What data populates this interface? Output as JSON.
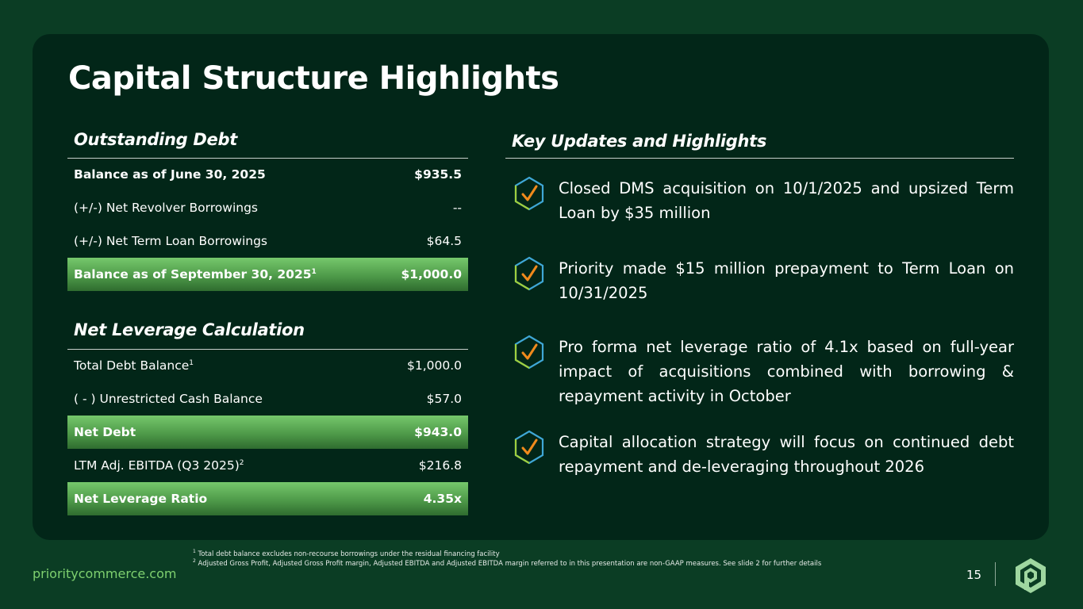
{
  "title": "Capital Structure Highlights",
  "outstanding_debt": {
    "heading": "Outstanding Debt",
    "rows": [
      {
        "label": "Balance as of June 30, 2025",
        "sup": "",
        "value": "$935.5"
      },
      {
        "label": "(+/-) Net Revolver Borrowings",
        "sup": "",
        "value": "--"
      },
      {
        "label": "(+/-) Net Term Loan Borrowings",
        "sup": "",
        "value": "$64.5"
      },
      {
        "label": "Balance as of September 30, 2025",
        "sup": "1",
        "value": "$1,000.0"
      }
    ]
  },
  "net_leverage": {
    "heading": "Net Leverage Calculation",
    "rows": [
      {
        "label": "Total Debt Balance",
        "sup": "1",
        "value": "$1,000.0"
      },
      {
        "label": "( - ) Unrestricted Cash Balance",
        "sup": "",
        "value": "$57.0"
      },
      {
        "label": "Net Debt",
        "sup": "",
        "value": "$943.0"
      },
      {
        "label": "LTM Adj. EBITDA (Q3 2025)",
        "sup": "2",
        "value": "$216.8"
      },
      {
        "label": "Net Leverage Ratio",
        "sup": "",
        "value": "4.35x"
      }
    ]
  },
  "key_updates": {
    "heading": "Key Updates and Highlights",
    "items": [
      "Closed DMS acquisition on 10/1/2025 and upsized Term Loan by $35 million",
      "Priority made $15 million prepayment to Term Loan on 10/31/2025",
      "Pro forma net leverage ratio of 4.1x based on full-year impact of acquisitions combined with borrowing & repayment activity in October",
      "Capital allocation strategy will focus on continued debt repayment and de-leveraging throughout 2026"
    ]
  },
  "footnotes": [
    {
      "mark": "1",
      "text": "Total debt balance excludes non-recourse borrowings under the residual financing facility"
    },
    {
      "mark": "2",
      "text": "Adjusted Gross Profit, Adjusted Gross Profit margin, Adjusted EBITDA and Adjusted EBITDA margin referred to in this presentation are non-GAAP measures. See slide 2 for further details"
    }
  ],
  "footer": {
    "url": "prioritycommerce.com",
    "page_number": "15"
  },
  "icons": {
    "checkmark": "check-hexagon-icon",
    "logo": "priority-logo-icon"
  },
  "colors": {
    "background": "#0b3d24",
    "panel": "#022618",
    "highlight_green": "#5fb25a",
    "accent_green": "#7ed06f",
    "check_orange": "#f08a1c"
  }
}
